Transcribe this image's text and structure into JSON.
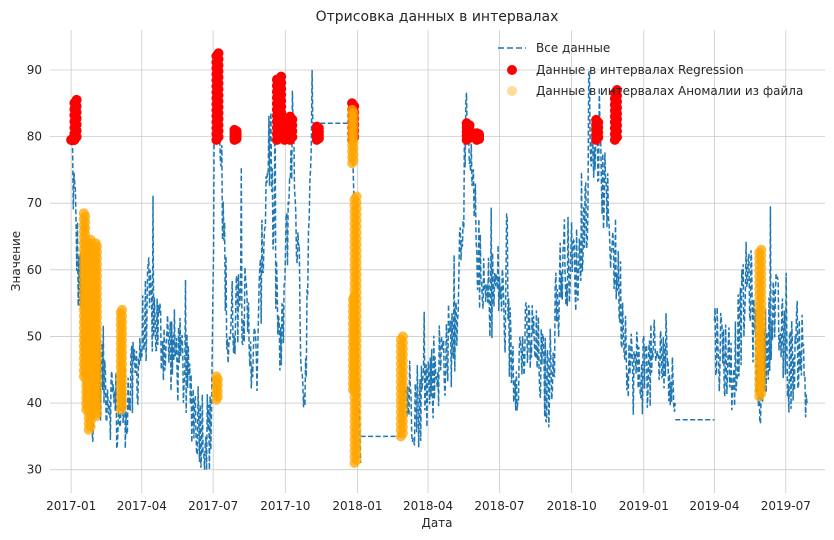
{
  "chart_data": {
    "type": "line",
    "title": "Отрисовка данных в интервалах",
    "xlabel": "Дата",
    "ylabel": "Значение",
    "ylim": [
      26.5,
      96
    ],
    "xlim": [
      "2016-12-05",
      "2019-08-20"
    ],
    "grid": true,
    "legend_position": "top-right",
    "x_ticks": [
      "2017-01",
      "2017-04",
      "2017-07",
      "2017-10",
      "2018-01",
      "2018-04",
      "2018-07",
      "2018-10",
      "2019-01",
      "2019-04",
      "2019-07"
    ],
    "y_ticks": [
      30,
      40,
      50,
      60,
      70,
      80,
      90
    ],
    "series": [
      {
        "name": "Все данные",
        "style": "dashed-line",
        "color": "#1f77b4",
        "segments": [
          {
            "x": [
              "2017-01-01",
              "2017-01-10",
              "2017-01-25",
              "2017-02-10",
              "2017-03-01",
              "2017-03-20",
              "2017-04-10",
              "2017-04-25",
              "2017-05-10",
              "2017-05-25",
              "2017-06-10",
              "2017-06-28",
              "2017-07-05",
              "2017-07-20",
              "2017-08-05",
              "2017-08-25",
              "2017-09-10",
              "2017-09-25",
              "2017-10-10",
              "2017-10-25",
              "2017-11-05"
            ],
            "y": [
              79.5,
              60,
              40,
              45,
              38,
              42,
              55,
              50,
              48,
              45,
              38,
              35,
              92,
              50,
              57,
              45,
              80,
              45,
              82,
              40,
              82
            ]
          },
          {
            "x": [
              "2017-11-05",
              "2017-12-25"
            ],
            "y": [
              82,
              82
            ]
          },
          {
            "x": [
              "2017-12-25",
              "2018-01-05"
            ],
            "y": [
              82,
              31
            ]
          },
          {
            "x": [
              "2018-01-05",
              "2018-02-25"
            ],
            "y": [
              35,
              35
            ]
          },
          {
            "x": [
              "2018-02-25",
              "2018-03-20",
              "2018-04-10",
              "2018-05-05",
              "2018-05-20",
              "2018-06-10",
              "2018-07-01",
              "2018-07-20",
              "2018-08-10",
              "2018-09-01",
              "2018-09-20",
              "2018-10-10",
              "2018-10-30",
              "2018-11-25",
              "2018-12-15",
              "2019-01-10",
              "2019-02-01",
              "2019-02-10"
            ],
            "y": [
              42,
              40,
              45,
              50,
              80,
              55,
              58,
              45,
              50,
              42,
              62,
              60,
              80,
              62,
              45,
              45,
              48,
              40
            ]
          },
          {
            "x": [
              "2019-02-10",
              "2019-04-01"
            ],
            "y": [
              37.5,
              37.5
            ]
          },
          {
            "x": [
              "2019-04-01",
              "2019-04-25",
              "2019-05-15",
              "2019-05-28",
              "2019-06-15",
              "2019-07-05",
              "2019-07-20",
              "2019-07-28"
            ],
            "y": [
              50,
              45,
              60,
              42,
              55,
              45,
              50,
              40
            ]
          }
        ]
      },
      {
        "name": "Данные в интервалах Regression",
        "style": "markers",
        "color": "#ff0000",
        "intervals": [
          {
            "x": [
              "2017-01-01",
              "2017-01-05"
            ],
            "y": [
              79.5,
              79.5
            ]
          },
          {
            "x": [
              "2017-01-05",
              "2017-01-08"
            ],
            "y": [
              79.5,
              85.5
            ]
          },
          {
            "x": [
              "2017-07-05",
              "2017-07-08"
            ],
            "y": [
              79.5,
              92.5
            ]
          },
          {
            "x": [
              "2017-07-28",
              "2017-07-31"
            ],
            "y": [
              79.5,
              81
            ]
          },
          {
            "x": [
              "2017-09-20",
              "2017-09-26"
            ],
            "y": [
              79.5,
              89
            ]
          },
          {
            "x": [
              "2017-09-30",
              "2017-10-02"
            ],
            "y": [
              79.5,
              82
            ]
          },
          {
            "x": [
              "2017-10-07",
              "2017-10-10"
            ],
            "y": [
              79.5,
              83
            ]
          },
          {
            "x": [
              "2017-11-10",
              "2017-11-13"
            ],
            "y": [
              79.5,
              81.5
            ]
          },
          {
            "x": [
              "2017-12-25",
              "2017-12-28"
            ],
            "y": [
              79.5,
              85
            ]
          },
          {
            "x": [
              "2018-05-20",
              "2018-05-24"
            ],
            "y": [
              79.5,
              82
            ]
          },
          {
            "x": [
              "2018-06-02",
              "2018-06-05"
            ],
            "y": [
              79.5,
              80.5
            ]
          },
          {
            "x": [
              "2018-11-01",
              "2018-11-04"
            ],
            "y": [
              79.5,
              82.5
            ]
          },
          {
            "x": [
              "2018-11-25",
              "2018-11-28"
            ],
            "y": [
              79.5,
              87
            ]
          }
        ]
      },
      {
        "name": "Данные в интервалах Аномалии из файла",
        "style": "markers",
        "color": "#ffa500",
        "intervals": [
          {
            "x": [
              "2017-01-17",
              "2017-01-19"
            ],
            "y": [
              44,
              68.5
            ]
          },
          {
            "x": [
              "2017-01-20",
              "2017-01-22"
            ],
            "y": [
              39,
              55
            ]
          },
          {
            "x": [
              "2017-01-23",
              "2017-01-26"
            ],
            "y": [
              36,
              64.5
            ]
          },
          {
            "x": [
              "2017-02-01",
              "2017-02-03"
            ],
            "y": [
              38,
              64
            ]
          },
          {
            "x": [
              "2017-03-05",
              "2017-03-07"
            ],
            "y": [
              39,
              54
            ]
          },
          {
            "x": [
              "2017-07-05",
              "2017-07-07"
            ],
            "y": [
              40.5,
              44
            ]
          },
          {
            "x": [
              "2017-12-25",
              "2017-12-27"
            ],
            "y": [
              76,
              84
            ]
          },
          {
            "x": [
              "2017-12-26",
              "2017-12-28"
            ],
            "y": [
              42,
              56
            ]
          },
          {
            "x": [
              "2017-12-28",
              "2017-12-31"
            ],
            "y": [
              31,
              71
            ]
          },
          {
            "x": [
              "2018-02-25",
              "2018-02-28"
            ],
            "y": [
              35,
              50
            ]
          },
          {
            "x": [
              "2019-05-28",
              "2019-05-31"
            ],
            "y": [
              41,
              63
            ]
          }
        ]
      }
    ]
  }
}
